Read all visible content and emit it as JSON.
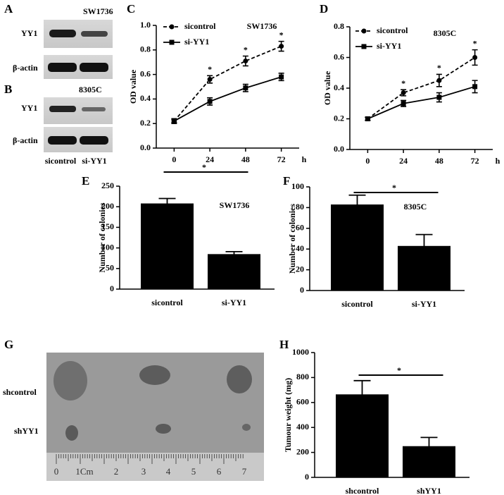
{
  "panels": [
    "A",
    "B",
    "C",
    "D",
    "E",
    "F",
    "G",
    "H"
  ],
  "blots": [
    {
      "title": "SW1736",
      "rows": [
        "YY1",
        "β-actin"
      ]
    },
    {
      "title": "8305C",
      "rows": [
        "YY1",
        "β-actin"
      ],
      "lanes": [
        "sicontrol",
        "si-YY1"
      ]
    }
  ],
  "photo": {
    "rows": [
      "shcontrol",
      "shYY1"
    ],
    "ruler": [
      "0",
      "1Cm",
      "2",
      "3",
      "4",
      "5",
      "6",
      "7"
    ]
  },
  "chart_data": [
    {
      "type": "line",
      "annotation": "SW1736",
      "y_label": "OD value",
      "x_label": "h",
      "x": [
        0,
        24,
        48,
        72
      ],
      "xlim": [
        -12,
        84
      ],
      "xticks": [
        0,
        24,
        48,
        72
      ],
      "ylim": [
        0,
        1
      ],
      "yticks": [
        {
          "value": 0,
          "label": "0.0"
        },
        0.2,
        0.4,
        0.6,
        0.8,
        {
          "value": 1,
          "label": "1.0"
        }
      ],
      "significance": [
        null,
        "*",
        "*",
        "*"
      ],
      "series": [
        {
          "name": "sicontrol",
          "color": "#000000",
          "marker": "circle",
          "dashed": true,
          "values": [
            0.22,
            0.56,
            0.71,
            0.83
          ],
          "errors": [
            0.02,
            0.03,
            0.04,
            0.04
          ]
        },
        {
          "name": "si-YY1",
          "color": "#000000",
          "marker": "square",
          "dashed": false,
          "values": [
            0.22,
            0.38,
            0.49,
            0.58
          ],
          "errors": [
            0.01,
            0.03,
            0.03,
            0.03
          ]
        }
      ]
    },
    {
      "type": "line",
      "annotation": "8305C",
      "y_label": "OD value",
      "x_label": "h",
      "x": [
        0,
        24,
        48,
        72
      ],
      "xlim": [
        -12,
        84
      ],
      "xticks": [
        0,
        24,
        48,
        72
      ],
      "ylim": [
        0,
        0.8
      ],
      "yticks": [
        {
          "value": 0,
          "label": "0.0"
        },
        0.2,
        0.4,
        0.6,
        0.8
      ],
      "significance": [
        null,
        "*",
        "*",
        "*"
      ],
      "series": [
        {
          "name": "sicontrol",
          "color": "#000000",
          "marker": "circle",
          "dashed": true,
          "values": [
            0.2,
            0.37,
            0.45,
            0.6
          ],
          "errors": [
            0.01,
            0.02,
            0.04,
            0.05
          ]
        },
        {
          "name": "si-YY1",
          "color": "#000000",
          "marker": "square",
          "dashed": false,
          "values": [
            0.2,
            0.3,
            0.34,
            0.41
          ],
          "errors": [
            0.01,
            0.02,
            0.03,
            0.04
          ]
        }
      ]
    },
    {
      "type": "bar",
      "annotation": "SW1736",
      "y_label": "Number of colonies",
      "categories": [
        "sicontrol",
        "si-YY1"
      ],
      "values": [
        208,
        85
      ],
      "errors": [
        12,
        6
      ],
      "color": "#000000",
      "ylim": [
        0,
        250
      ],
      "yticks": [
        0,
        50,
        100,
        150,
        200,
        250
      ],
      "significance": "*"
    },
    {
      "type": "bar",
      "annotation": "8305C",
      "y_label": "Number of colonies",
      "categories": [
        "sicontrol",
        "si-YY1"
      ],
      "values": [
        83,
        43
      ],
      "errors": [
        9,
        11
      ],
      "color": "#000000",
      "ylim": [
        0,
        100
      ],
      "yticks": [
        0,
        20,
        40,
        60,
        80,
        100
      ],
      "significance": "*"
    },
    {
      "type": "bar",
      "y_label": "Tumour weight (mg)",
      "categories": [
        "shcontrol",
        "shYY1"
      ],
      "values": [
        665,
        250
      ],
      "errors": [
        110,
        70
      ],
      "color": "#000000",
      "ylim": [
        0,
        1000
      ],
      "yticks": [
        0,
        200,
        400,
        600,
        800,
        1000
      ],
      "significance": "*"
    }
  ]
}
